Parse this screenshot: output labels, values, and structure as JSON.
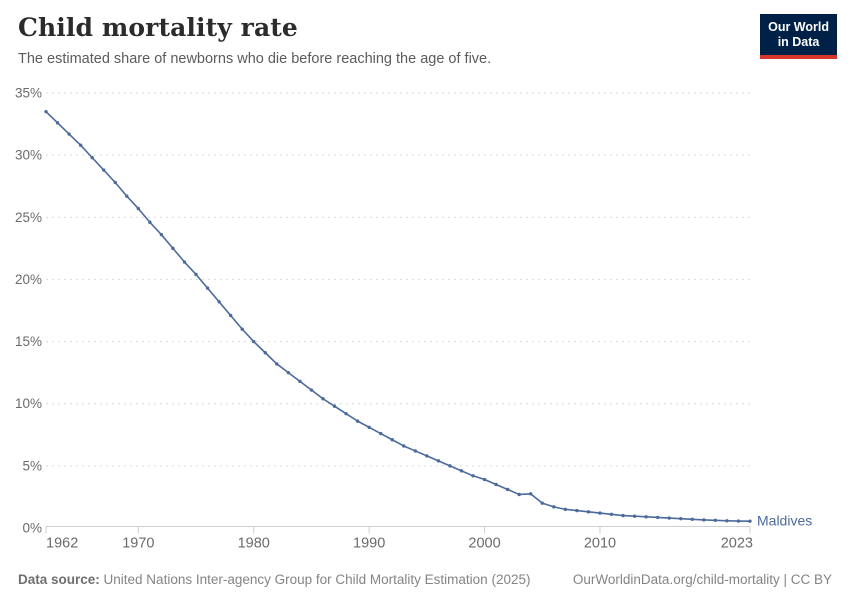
{
  "header": {
    "title": "Child mortality rate",
    "subtitle": "The estimated share of newborns who die before reaching the age of five.",
    "logo": {
      "line1": "Our World",
      "line2": "in Data"
    }
  },
  "footer": {
    "source_label": "Data source:",
    "source_text": " United Nations Inter-agency Group for Child Mortality Estimation (2025)",
    "link_text": "OurWorldinData.org/child-mortality | CC BY"
  },
  "colors": {
    "line": "#4C6A9C",
    "grid": "#d9d9d9",
    "axis": "#cfcfcf",
    "axis_text": "#6b6b6b",
    "title": "#2b2b2b",
    "subtitle": "#5b5b5b",
    "footer": "#848484",
    "logo_bg": "#002147",
    "logo_accent": "#d8352c"
  },
  "chart_data": {
    "type": "line",
    "title": "Child mortality rate",
    "xlabel": "",
    "ylabel": "",
    "xlim": [
      1962,
      2023
    ],
    "ylim": [
      0,
      35
    ],
    "x_ticks": [
      1962,
      1970,
      1980,
      1990,
      2000,
      2010,
      2023
    ],
    "y_ticks": [
      0,
      5,
      10,
      15,
      20,
      25,
      30,
      35
    ],
    "y_tick_suffix": "%",
    "grid": "dashed-horizontal",
    "legend": "inline-end-label",
    "series": [
      {
        "name": "Maldives",
        "color": "#4C6A9C",
        "x": [
          1962,
          1963,
          1964,
          1965,
          1966,
          1967,
          1968,
          1969,
          1970,
          1971,
          1972,
          1973,
          1974,
          1975,
          1976,
          1977,
          1978,
          1979,
          1980,
          1981,
          1982,
          1983,
          1984,
          1985,
          1986,
          1987,
          1988,
          1989,
          1990,
          1991,
          1992,
          1993,
          1994,
          1995,
          1996,
          1997,
          1998,
          1999,
          2000,
          2001,
          2002,
          2003,
          2004,
          2005,
          2006,
          2007,
          2008,
          2009,
          2010,
          2011,
          2012,
          2013,
          2014,
          2015,
          2016,
          2017,
          2018,
          2019,
          2020,
          2021,
          2022,
          2023
        ],
        "values": [
          33.5,
          32.6,
          31.7,
          30.8,
          29.8,
          28.8,
          27.8,
          26.7,
          25.7,
          24.6,
          23.6,
          22.5,
          21.4,
          20.4,
          19.3,
          18.2,
          17.1,
          16.0,
          15.0,
          14.1,
          13.2,
          12.5,
          11.8,
          11.1,
          10.4,
          9.8,
          9.2,
          8.6,
          8.1,
          7.6,
          7.1,
          6.6,
          6.2,
          5.8,
          5.4,
          5.0,
          4.6,
          4.2,
          3.9,
          3.5,
          3.1,
          2.7,
          2.75,
          2.0,
          1.7,
          1.5,
          1.4,
          1.3,
          1.2,
          1.1,
          1.0,
          0.95,
          0.9,
          0.85,
          0.8,
          0.75,
          0.7,
          0.65,
          0.62,
          0.58,
          0.56,
          0.55
        ]
      }
    ]
  }
}
